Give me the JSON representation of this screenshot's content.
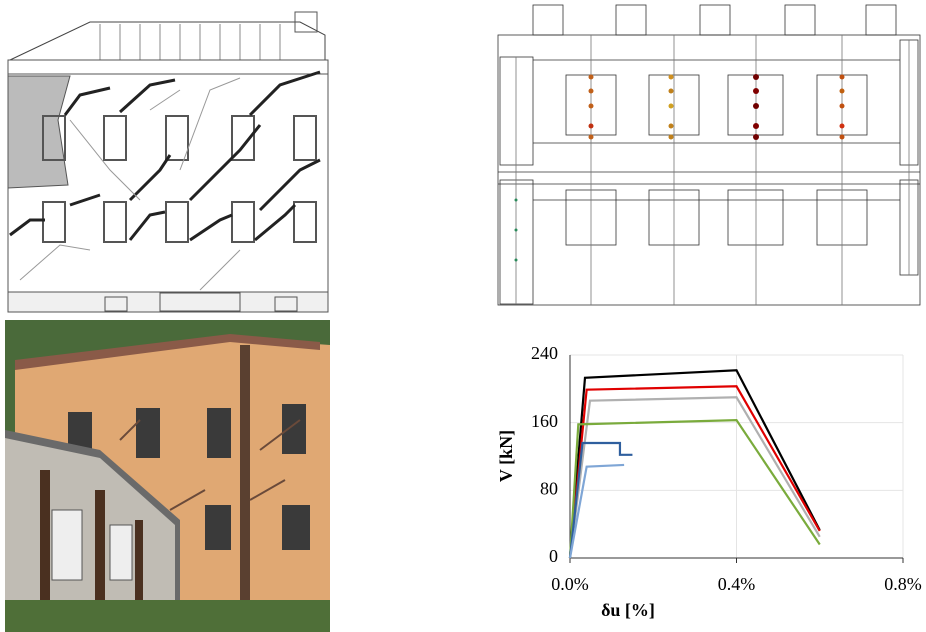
{
  "chart_data": {
    "type": "line",
    "x_label": "δu [%]",
    "y_label": "V [kN]",
    "xlim": [
      0,
      0.8
    ],
    "xticks": [
      {
        "value": 0,
        "label": "0.0%"
      },
      {
        "value": 0.4,
        "label": "0.4%"
      },
      {
        "value": 0.8,
        "label": "0.8%"
      }
    ],
    "ylim": [
      0,
      240
    ],
    "yticks": [
      0,
      80,
      160,
      240
    ],
    "grid": true,
    "series": [
      {
        "color": "#000000",
        "x": [
          0,
          0.036,
          0.4,
          0.6
        ],
        "values": [
          0,
          213,
          222,
          33
        ]
      },
      {
        "color": "#e00000",
        "x": [
          0,
          0.04,
          0.4,
          0.6
        ],
        "values": [
          0,
          199,
          203,
          32
        ]
      },
      {
        "color": "#b0b0b0",
        "x": [
          0,
          0.048,
          0.4,
          0.6
        ],
        "values": [
          0,
          186,
          190,
          25
        ]
      },
      {
        "color": "#7aab3c",
        "x": [
          0,
          0.02,
          0.4,
          0.6
        ],
        "values": [
          0,
          158,
          163,
          16
        ]
      },
      {
        "color": "#2f5f9e",
        "x": [
          0,
          0.03,
          0.12,
          0.12,
          0.15
        ],
        "values": [
          0,
          136,
          136,
          122,
          122
        ]
      },
      {
        "color": "#7fa6d6",
        "x": [
          0,
          0.04,
          0.13
        ],
        "values": [
          0,
          108,
          110
        ]
      }
    ]
  }
}
